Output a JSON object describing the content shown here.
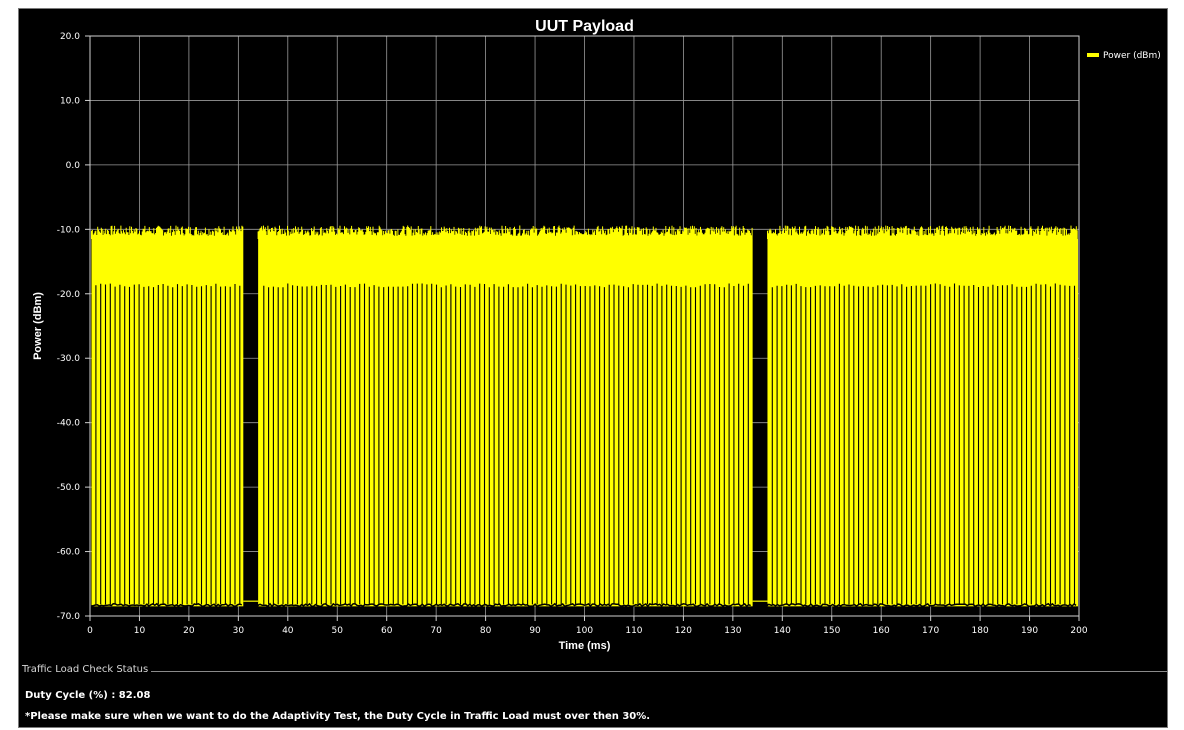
{
  "chart_data": {
    "type": "line",
    "title": "UUT Payload",
    "xlabel": "Time (ms)",
    "ylabel": "Power (dBm)",
    "xlim": [
      0,
      200
    ],
    "ylim": [
      -70,
      20
    ],
    "x_ticks": [
      0,
      10,
      20,
      30,
      40,
      50,
      60,
      70,
      80,
      90,
      100,
      110,
      120,
      130,
      140,
      150,
      160,
      170,
      180,
      190,
      200
    ],
    "y_ticks": [
      "20.0",
      "10.0",
      "0.0",
      "-10.0",
      "-20.0",
      "-30.0",
      "-40.0",
      "-50.0",
      "-60.0",
      "-70.0"
    ],
    "grid": true,
    "legend_position": "top-right",
    "series": [
      {
        "name": "Power (dBm)",
        "color": "#ffff00",
        "burst_level_dbm": -11.5,
        "gap_level_dbm": -19,
        "noise_floor_dbm": -68.5,
        "off_periods_ms": [
          [
            31,
            34
          ],
          [
            134,
            137
          ]
        ]
      }
    ]
  },
  "status": {
    "group_label": "Traffic Load Check Status",
    "duty_cycle": "Duty Cycle (%) : 82.08",
    "note": "*Please make sure when we want to do the Adaptivity Test, the Duty Cycle in Traffic Load must over then 30%."
  }
}
